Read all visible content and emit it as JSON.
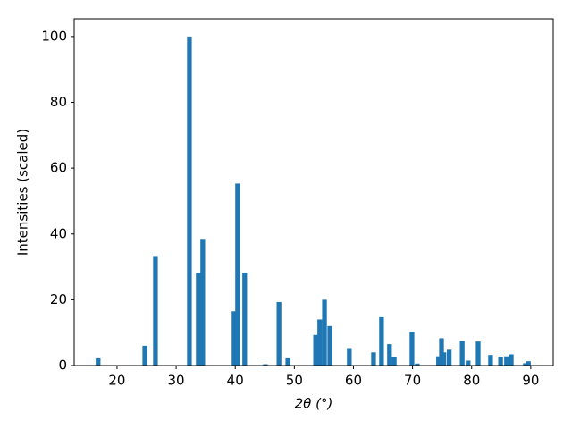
{
  "chart_data": {
    "type": "bar",
    "x_label": "2θ (°)",
    "y_label": "Intensities (scaled)",
    "color": "#1f77b4",
    "x": [
      16.8,
      24.7,
      26.5,
      32.25,
      33.75,
      34.5,
      39.8,
      40.4,
      41.6,
      45.1,
      47.4,
      48.9,
      53.6,
      54.3,
      55.1,
      56.0,
      59.3,
      63.4,
      64.75,
      66.1,
      66.9,
      69.9,
      70.8,
      74.4,
      74.9,
      75.3,
      76.2,
      78.4,
      79.4,
      81.1,
      83.2,
      84.9,
      85.9,
      86.7,
      89.1,
      89.6
    ],
    "values": [
      2.2,
      6,
      33.3,
      100,
      28.2,
      38.5,
      16.5,
      55.3,
      28.2,
      0.4,
      19.3,
      2.2,
      9.3,
      14,
      20,
      12,
      5.3,
      4,
      14.7,
      6.5,
      2.5,
      10.3,
      0.6,
      2.8,
      8.3,
      4,
      4.8,
      7.5,
      1.5,
      7.3,
      3.2,
      2.7,
      2.8,
      3.4,
      0.7,
      1.3
    ],
    "xlim": [
      12.75,
      93.8
    ],
    "xticks": [
      20,
      30,
      40,
      50,
      60,
      70,
      80,
      90
    ],
    "ylim": [
      0,
      105.4
    ],
    "yticks": [
      0,
      20,
      40,
      60,
      80,
      100
    ]
  }
}
